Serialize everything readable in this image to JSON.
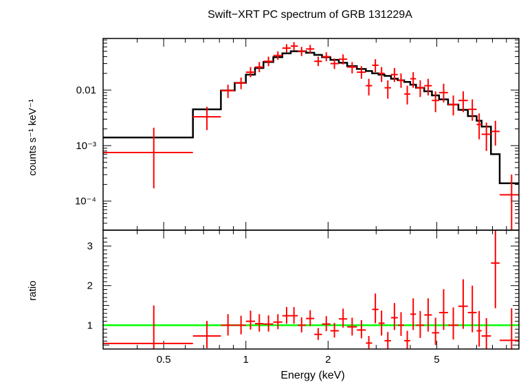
{
  "chart_data": [
    {
      "panel": "spectrum",
      "type": "scatter",
      "title": "Swift−XRT PC spectrum of GRB 131229A",
      "ylabel": "counts s⁻¹ keV⁻¹",
      "xscale": "log",
      "yscale": "log",
      "xlim": [
        0.3,
        10
      ],
      "ylim": [
        3e-05,
        0.085
      ],
      "yticks": [
        {
          "value": 0.01,
          "label": "0.01"
        },
        {
          "value": 0.001,
          "label": "10⁻³"
        },
        {
          "value": 0.0001,
          "label": "10⁻⁴"
        }
      ],
      "colors": {
        "data": "#ff0000",
        "model": "#000000"
      },
      "data": [
        {
          "x": 0.46,
          "xlo": 0.3,
          "xhi": 0.64,
          "y": 0.00075,
          "ylo": 0.00017,
          "yhi": 0.0021
        },
        {
          "x": 0.72,
          "xlo": 0.64,
          "xhi": 0.81,
          "y": 0.0033,
          "ylo": 0.0019,
          "yhi": 0.005
        },
        {
          "x": 0.86,
          "xlo": 0.81,
          "xhi": 0.91,
          "y": 0.0098,
          "ylo": 0.0072,
          "yhi": 0.0125
        },
        {
          "x": 0.96,
          "xlo": 0.91,
          "xhi": 1.0,
          "y": 0.0135,
          "ylo": 0.0104,
          "yhi": 0.0168
        },
        {
          "x": 1.04,
          "xlo": 1.0,
          "xhi": 1.08,
          "y": 0.021,
          "ylo": 0.017,
          "yhi": 0.026
        },
        {
          "x": 1.12,
          "xlo": 1.08,
          "xhi": 1.16,
          "y": 0.026,
          "ylo": 0.021,
          "yhi": 0.032
        },
        {
          "x": 1.21,
          "xlo": 1.16,
          "xhi": 1.26,
          "y": 0.033,
          "ylo": 0.027,
          "yhi": 0.04
        },
        {
          "x": 1.31,
          "xlo": 1.26,
          "xhi": 1.36,
          "y": 0.042,
          "ylo": 0.035,
          "yhi": 0.05
        },
        {
          "x": 1.41,
          "xlo": 1.36,
          "xhi": 1.46,
          "y": 0.057,
          "ylo": 0.048,
          "yhi": 0.067
        },
        {
          "x": 1.5,
          "xlo": 1.46,
          "xhi": 1.55,
          "y": 0.062,
          "ylo": 0.052,
          "yhi": 0.073
        },
        {
          "x": 1.6,
          "xlo": 1.55,
          "xhi": 1.66,
          "y": 0.05,
          "ylo": 0.041,
          "yhi": 0.06
        },
        {
          "x": 1.72,
          "xlo": 1.66,
          "xhi": 1.78,
          "y": 0.055,
          "ylo": 0.046,
          "yhi": 0.065
        },
        {
          "x": 1.84,
          "xlo": 1.78,
          "xhi": 1.9,
          "y": 0.033,
          "ylo": 0.027,
          "yhi": 0.04
        },
        {
          "x": 1.97,
          "xlo": 1.9,
          "xhi": 2.04,
          "y": 0.04,
          "ylo": 0.033,
          "yhi": 0.048
        },
        {
          "x": 2.11,
          "xlo": 2.04,
          "xhi": 2.19,
          "y": 0.03,
          "ylo": 0.024,
          "yhi": 0.037
        },
        {
          "x": 2.27,
          "xlo": 2.19,
          "xhi": 2.35,
          "y": 0.036,
          "ylo": 0.029,
          "yhi": 0.044
        },
        {
          "x": 2.45,
          "xlo": 2.35,
          "xhi": 2.55,
          "y": 0.026,
          "ylo": 0.02,
          "yhi": 0.032
        },
        {
          "x": 2.65,
          "xlo": 2.55,
          "xhi": 2.75,
          "y": 0.021,
          "ylo": 0.016,
          "yhi": 0.027
        },
        {
          "x": 2.82,
          "xlo": 2.75,
          "xhi": 2.9,
          "y": 0.012,
          "ylo": 0.008,
          "yhi": 0.016
        },
        {
          "x": 2.98,
          "xlo": 2.9,
          "xhi": 3.06,
          "y": 0.028,
          "ylo": 0.021,
          "yhi": 0.036
        },
        {
          "x": 3.14,
          "xlo": 3.06,
          "xhi": 3.22,
          "y": 0.02,
          "ylo": 0.014,
          "yhi": 0.026
        },
        {
          "x": 3.31,
          "xlo": 3.22,
          "xhi": 3.4,
          "y": 0.011,
          "ylo": 0.007,
          "yhi": 0.015
        },
        {
          "x": 3.5,
          "xlo": 3.4,
          "xhi": 3.6,
          "y": 0.019,
          "ylo": 0.014,
          "yhi": 0.025
        },
        {
          "x": 3.7,
          "xlo": 3.6,
          "xhi": 3.8,
          "y": 0.015,
          "ylo": 0.011,
          "yhi": 0.02
        },
        {
          "x": 3.9,
          "xlo": 3.8,
          "xhi": 4.0,
          "y": 0.0085,
          "ylo": 0.0055,
          "yhi": 0.012
        },
        {
          "x": 4.1,
          "xlo": 4.0,
          "xhi": 4.2,
          "y": 0.016,
          "ylo": 0.011,
          "yhi": 0.021
        },
        {
          "x": 4.35,
          "xlo": 4.2,
          "xhi": 4.5,
          "y": 0.011,
          "ylo": 0.0075,
          "yhi": 0.015
        },
        {
          "x": 4.65,
          "xlo": 4.5,
          "xhi": 4.8,
          "y": 0.012,
          "ylo": 0.008,
          "yhi": 0.016
        },
        {
          "x": 4.95,
          "xlo": 4.8,
          "xhi": 5.1,
          "y": 0.0065,
          "ylo": 0.004,
          "yhi": 0.0095
        },
        {
          "x": 5.3,
          "xlo": 5.1,
          "xhi": 5.5,
          "y": 0.009,
          "ylo": 0.006,
          "yhi": 0.013
        },
        {
          "x": 5.75,
          "xlo": 5.5,
          "xhi": 6.0,
          "y": 0.0055,
          "ylo": 0.0035,
          "yhi": 0.008
        },
        {
          "x": 6.25,
          "xlo": 6.0,
          "xhi": 6.5,
          "y": 0.0065,
          "ylo": 0.004,
          "yhi": 0.0095
        },
        {
          "x": 6.75,
          "xlo": 6.5,
          "xhi": 7.0,
          "y": 0.0045,
          "ylo": 0.0028,
          "yhi": 0.0068
        },
        {
          "x": 7.15,
          "xlo": 7.0,
          "xhi": 7.3,
          "y": 0.0024,
          "ylo": 0.0013,
          "yhi": 0.0038
        },
        {
          "x": 7.6,
          "xlo": 7.3,
          "xhi": 7.9,
          "y": 0.0016,
          "ylo": 0.0008,
          "yhi": 0.0026
        },
        {
          "x": 8.2,
          "xlo": 7.9,
          "xhi": 8.5,
          "y": 0.0018,
          "ylo": 0.001,
          "yhi": 0.0028
        },
        {
          "x": 9.4,
          "xlo": 8.5,
          "xhi": 10.0,
          "y": 0.00013,
          "ylo": 3e-05,
          "yhi": 0.0003
        }
      ],
      "model": [
        {
          "xlo": 0.3,
          "xhi": 0.64,
          "y": 0.0014
        },
        {
          "xlo": 0.64,
          "xhi": 0.81,
          "y": 0.0045
        },
        {
          "xlo": 0.81,
          "xhi": 0.91,
          "y": 0.0098
        },
        {
          "xlo": 0.91,
          "xhi": 1.0,
          "y": 0.0135
        },
        {
          "xlo": 1.0,
          "xhi": 1.08,
          "y": 0.019
        },
        {
          "xlo": 1.08,
          "xhi": 1.16,
          "y": 0.025
        },
        {
          "xlo": 1.16,
          "xhi": 1.26,
          "y": 0.032
        },
        {
          "xlo": 1.26,
          "xhi": 1.36,
          "y": 0.039
        },
        {
          "xlo": 1.36,
          "xhi": 1.46,
          "y": 0.046
        },
        {
          "xlo": 1.46,
          "xhi": 1.55,
          "y": 0.05
        },
        {
          "xlo": 1.55,
          "xhi": 1.66,
          "y": 0.05
        },
        {
          "xlo": 1.66,
          "xhi": 1.78,
          "y": 0.047
        },
        {
          "xlo": 1.78,
          "xhi": 1.9,
          "y": 0.043
        },
        {
          "xlo": 1.9,
          "xhi": 2.04,
          "y": 0.039
        },
        {
          "xlo": 2.04,
          "xhi": 2.19,
          "y": 0.035
        },
        {
          "xlo": 2.19,
          "xhi": 2.35,
          "y": 0.031
        },
        {
          "xlo": 2.35,
          "xhi": 2.55,
          "y": 0.027
        },
        {
          "xlo": 2.55,
          "xhi": 2.75,
          "y": 0.024
        },
        {
          "xlo": 2.75,
          "xhi": 2.9,
          "y": 0.022
        },
        {
          "xlo": 2.9,
          "xhi": 3.06,
          "y": 0.02
        },
        {
          "xlo": 3.06,
          "xhi": 3.22,
          "y": 0.019
        },
        {
          "xlo": 3.22,
          "xhi": 3.4,
          "y": 0.018
        },
        {
          "xlo": 3.4,
          "xhi": 3.6,
          "y": 0.016
        },
        {
          "xlo": 3.6,
          "xhi": 3.8,
          "y": 0.015
        },
        {
          "xlo": 3.8,
          "xhi": 4.0,
          "y": 0.014
        },
        {
          "xlo": 4.0,
          "xhi": 4.2,
          "y": 0.0125
        },
        {
          "xlo": 4.2,
          "xhi": 4.5,
          "y": 0.011
        },
        {
          "xlo": 4.5,
          "xhi": 4.8,
          "y": 0.0095
        },
        {
          "xlo": 4.8,
          "xhi": 5.1,
          "y": 0.008
        },
        {
          "xlo": 5.1,
          "xhi": 5.5,
          "y": 0.0068
        },
        {
          "xlo": 5.5,
          "xhi": 6.0,
          "y": 0.0055
        },
        {
          "xlo": 6.0,
          "xhi": 6.5,
          "y": 0.0044
        },
        {
          "xlo": 6.5,
          "xhi": 7.0,
          "y": 0.0034
        },
        {
          "xlo": 7.0,
          "xhi": 7.3,
          "y": 0.0028
        },
        {
          "xlo": 7.3,
          "xhi": 7.9,
          "y": 0.0022
        },
        {
          "xlo": 7.9,
          "xhi": 8.5,
          "y": 0.0007
        },
        {
          "xlo": 8.5,
          "xhi": 10.0,
          "y": 0.00021
        }
      ]
    },
    {
      "panel": "ratio",
      "type": "scatter",
      "xlabel": "Energy (keV)",
      "ylabel": "ratio",
      "xscale": "log",
      "xlim": [
        0.3,
        10
      ],
      "ylim": [
        0.4,
        3.4
      ],
      "yticks": [
        {
          "value": 1,
          "label": "1"
        },
        {
          "value": 2,
          "label": "2"
        },
        {
          "value": 3,
          "label": "3"
        }
      ],
      "xticks": [
        {
          "value": 0.5,
          "label": "0.5"
        },
        {
          "value": 1,
          "label": "1"
        },
        {
          "value": 2,
          "label": "2"
        },
        {
          "value": 5,
          "label": "5"
        }
      ],
      "reference_line": {
        "y": 1,
        "color": "#00ff00"
      },
      "colors": {
        "data": "#ff0000"
      },
      "data": [
        {
          "x": 0.46,
          "xlo": 0.3,
          "xhi": 0.64,
          "y": 0.54,
          "ylo": 0.12,
          "yhi": 1.5
        },
        {
          "x": 0.72,
          "xlo": 0.64,
          "xhi": 0.81,
          "y": 0.73,
          "ylo": 0.42,
          "yhi": 1.11
        },
        {
          "x": 0.86,
          "xlo": 0.81,
          "xhi": 0.91,
          "y": 1.0,
          "ylo": 0.74,
          "yhi": 1.28
        },
        {
          "x": 0.96,
          "xlo": 0.91,
          "xhi": 1.0,
          "y": 1.0,
          "ylo": 0.77,
          "yhi": 1.24
        },
        {
          "x": 1.04,
          "xlo": 1.0,
          "xhi": 1.08,
          "y": 1.1,
          "ylo": 0.89,
          "yhi": 1.37
        },
        {
          "x": 1.12,
          "xlo": 1.08,
          "xhi": 1.16,
          "y": 1.04,
          "ylo": 0.84,
          "yhi": 1.28
        },
        {
          "x": 1.21,
          "xlo": 1.16,
          "xhi": 1.26,
          "y": 1.03,
          "ylo": 0.84,
          "yhi": 1.25
        },
        {
          "x": 1.31,
          "xlo": 1.26,
          "xhi": 1.36,
          "y": 1.08,
          "ylo": 0.9,
          "yhi": 1.28
        },
        {
          "x": 1.41,
          "xlo": 1.36,
          "xhi": 1.46,
          "y": 1.24,
          "ylo": 1.04,
          "yhi": 1.46
        },
        {
          "x": 1.5,
          "xlo": 1.46,
          "xhi": 1.55,
          "y": 1.24,
          "ylo": 1.04,
          "yhi": 1.46
        },
        {
          "x": 1.6,
          "xlo": 1.55,
          "xhi": 1.66,
          "y": 1.0,
          "ylo": 0.82,
          "yhi": 1.2
        },
        {
          "x": 1.72,
          "xlo": 1.66,
          "xhi": 1.78,
          "y": 1.17,
          "ylo": 0.98,
          "yhi": 1.38
        },
        {
          "x": 1.84,
          "xlo": 1.78,
          "xhi": 1.9,
          "y": 0.77,
          "ylo": 0.63,
          "yhi": 0.93
        },
        {
          "x": 1.97,
          "xlo": 1.9,
          "xhi": 2.04,
          "y": 1.03,
          "ylo": 0.85,
          "yhi": 1.23
        },
        {
          "x": 2.11,
          "xlo": 2.04,
          "xhi": 2.19,
          "y": 0.86,
          "ylo": 0.69,
          "yhi": 1.06
        },
        {
          "x": 2.27,
          "xlo": 2.19,
          "xhi": 2.35,
          "y": 1.16,
          "ylo": 0.94,
          "yhi": 1.42
        },
        {
          "x": 2.45,
          "xlo": 2.35,
          "xhi": 2.55,
          "y": 0.96,
          "ylo": 0.74,
          "yhi": 1.19
        },
        {
          "x": 2.65,
          "xlo": 2.55,
          "xhi": 2.75,
          "y": 0.88,
          "ylo": 0.67,
          "yhi": 1.13
        },
        {
          "x": 2.82,
          "xlo": 2.75,
          "xhi": 2.9,
          "y": 0.55,
          "ylo": 0.36,
          "yhi": 0.73
        },
        {
          "x": 2.98,
          "xlo": 2.9,
          "xhi": 3.06,
          "y": 1.4,
          "ylo": 1.05,
          "yhi": 1.8
        },
        {
          "x": 3.14,
          "xlo": 3.06,
          "xhi": 3.22,
          "y": 1.05,
          "ylo": 0.74,
          "yhi": 1.37
        },
        {
          "x": 3.31,
          "xlo": 3.22,
          "xhi": 3.4,
          "y": 0.61,
          "ylo": 0.39,
          "yhi": 0.83
        },
        {
          "x": 3.5,
          "xlo": 3.4,
          "xhi": 3.6,
          "y": 1.19,
          "ylo": 0.88,
          "yhi": 1.56
        },
        {
          "x": 3.7,
          "xlo": 3.6,
          "xhi": 3.8,
          "y": 1.0,
          "ylo": 0.73,
          "yhi": 1.33
        },
        {
          "x": 3.9,
          "xlo": 3.8,
          "xhi": 4.0,
          "y": 0.61,
          "ylo": 0.39,
          "yhi": 0.86
        },
        {
          "x": 4.1,
          "xlo": 4.0,
          "xhi": 4.2,
          "y": 1.28,
          "ylo": 0.88,
          "yhi": 1.68
        },
        {
          "x": 4.35,
          "xlo": 4.2,
          "xhi": 4.5,
          "y": 1.0,
          "ylo": 0.68,
          "yhi": 1.36
        },
        {
          "x": 4.65,
          "xlo": 4.5,
          "xhi": 4.8,
          "y": 1.26,
          "ylo": 0.84,
          "yhi": 1.68
        },
        {
          "x": 4.95,
          "xlo": 4.8,
          "xhi": 5.1,
          "y": 0.81,
          "ylo": 0.5,
          "yhi": 1.19
        },
        {
          "x": 5.3,
          "xlo": 5.1,
          "xhi": 5.5,
          "y": 1.32,
          "ylo": 0.88,
          "yhi": 1.91
        },
        {
          "x": 5.75,
          "xlo": 5.5,
          "xhi": 6.0,
          "y": 1.0,
          "ylo": 0.64,
          "yhi": 1.45
        },
        {
          "x": 6.25,
          "xlo": 6.0,
          "xhi": 6.5,
          "y": 1.48,
          "ylo": 0.91,
          "yhi": 2.16
        },
        {
          "x": 6.75,
          "xlo": 6.5,
          "xhi": 7.0,
          "y": 1.32,
          "ylo": 0.82,
          "yhi": 2.0
        },
        {
          "x": 7.15,
          "xlo": 7.0,
          "xhi": 7.3,
          "y": 0.86,
          "ylo": 0.46,
          "yhi": 1.36
        },
        {
          "x": 7.6,
          "xlo": 7.3,
          "xhi": 7.9,
          "y": 0.73,
          "ylo": 0.36,
          "yhi": 1.18
        },
        {
          "x": 8.2,
          "xlo": 7.9,
          "xhi": 8.5,
          "y": 2.57,
          "ylo": 1.43,
          "yhi": 4.0
        },
        {
          "x": 9.4,
          "xlo": 8.5,
          "xhi": 10.0,
          "y": 0.62,
          "ylo": 0.14,
          "yhi": 1.43
        }
      ]
    }
  ]
}
